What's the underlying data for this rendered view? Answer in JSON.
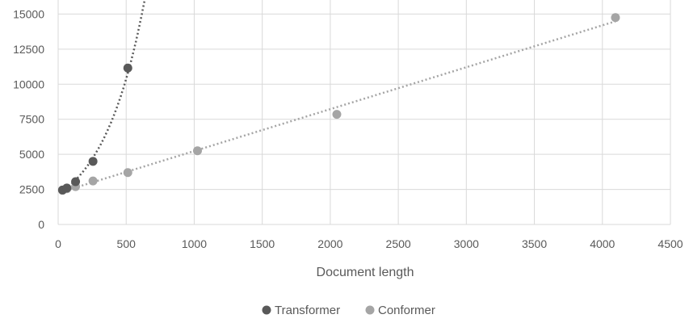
{
  "chart_data": {
    "type": "scatter",
    "xlabel": "Document length",
    "ylabel": "",
    "xlim": [
      0,
      4500
    ],
    "ylim": [
      0,
      16000
    ],
    "x_ticks": [
      "0",
      "500",
      "1000",
      "1500",
      "2000",
      "2500",
      "3000",
      "3500",
      "4000",
      "4500"
    ],
    "y_ticks": [
      "0",
      "2500",
      "5000",
      "7500",
      "10000",
      "12500",
      "15000"
    ],
    "grid": true,
    "legend_position": "bottom",
    "series": [
      {
        "name": "Transformer",
        "color": "#595959",
        "trendline": "exponential dotted",
        "points": [
          [
            32,
            2450
          ],
          [
            64,
            2600
          ],
          [
            128,
            3050
          ],
          [
            256,
            4500
          ],
          [
            512,
            11150
          ]
        ]
      },
      {
        "name": "Conformer",
        "color": "#a5a5a5",
        "trendline": "linear dotted",
        "points": [
          [
            32,
            2450
          ],
          [
            64,
            2550
          ],
          [
            128,
            2700
          ],
          [
            256,
            3100
          ],
          [
            512,
            3700
          ],
          [
            1024,
            5250
          ],
          [
            2048,
            7850
          ],
          [
            4096,
            14750
          ]
        ]
      }
    ]
  }
}
